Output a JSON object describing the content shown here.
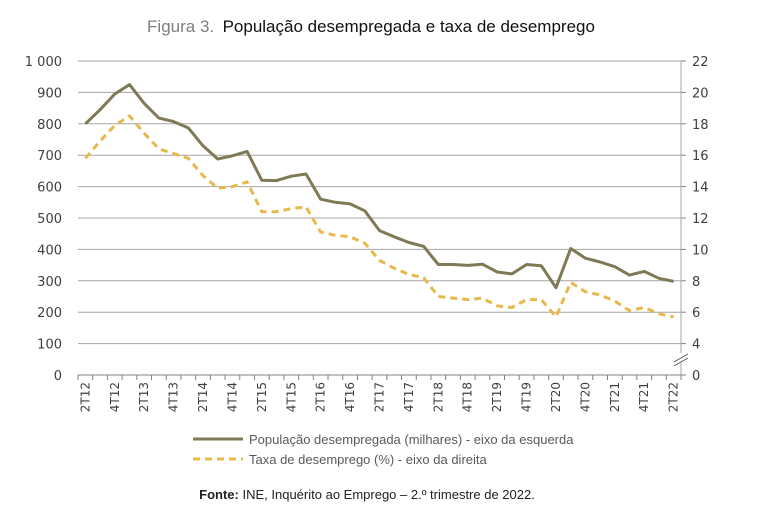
{
  "title": {
    "prefix": "Figura 3.",
    "main": "População desempregada e taxa de desemprego"
  },
  "source": {
    "label": "Fonte:",
    "text": " INE, Inquérito ao Emprego – 2.º trimestre de 2022."
  },
  "chart_data": {
    "type": "line",
    "x": [
      "2T12",
      "3T12",
      "4T12",
      "1T13",
      "2T13",
      "3T13",
      "4T13",
      "1T14",
      "2T14",
      "3T14",
      "4T14",
      "1T15",
      "2T15",
      "3T15",
      "4T15",
      "1T16",
      "2T16",
      "3T16",
      "4T16",
      "1T17",
      "2T17",
      "3T17",
      "4T17",
      "1T18",
      "2T18",
      "3T18",
      "4T18",
      "1T19",
      "2T19",
      "3T19",
      "4T19",
      "1T20",
      "2T20",
      "3T20",
      "4T20",
      "1T21",
      "2T21",
      "3T21",
      "4T21",
      "1T22",
      "2T22"
    ],
    "x_tick_labels": [
      "2T12",
      "4T12",
      "2T13",
      "4T13",
      "2T14",
      "4T14",
      "2T15",
      "4T15",
      "2T16",
      "4T16",
      "2T17",
      "4T17",
      "2T18",
      "4T18",
      "2T19",
      "4T19",
      "2T20",
      "4T20",
      "2T21",
      "4T21",
      "2T22"
    ],
    "y_left": {
      "ylim": [
        0,
        1000
      ],
      "ticks": [
        "0",
        "100",
        "200",
        "300",
        "400",
        "500",
        "600",
        "700",
        "800",
        "900",
        "1 000"
      ]
    },
    "y_right": {
      "ylim": [
        0,
        22
      ],
      "ticks": [
        "0",
        "4",
        "6",
        "8",
        "10",
        "12",
        "14",
        "16",
        "18",
        "20",
        "22"
      ],
      "axis_break": true
    },
    "grid": true,
    "legend_placement": "bottom",
    "series": [
      {
        "name": "População desempregada (milhares) - eixo da esquerda",
        "axis": "left",
        "style": "solid",
        "color": "#7f7a55",
        "values": [
          800,
          845,
          895,
          925,
          865,
          818,
          807,
          787,
          730,
          688,
          698,
          712,
          620,
          619,
          633,
          640,
          560,
          550,
          545,
          523,
          460,
          440,
          422,
          410,
          352,
          352,
          349,
          353,
          328,
          322,
          352,
          348,
          278,
          403,
          372,
          360,
          345,
          318,
          330,
          308,
          298
        ]
      },
      {
        "name": "Taxa de desemprego (%) - eixo da direita",
        "axis": "right",
        "style": "dashed",
        "color": "#e8b84a",
        "values": [
          15.8,
          16.9,
          17.9,
          18.5,
          17.4,
          16.4,
          16.1,
          15.8,
          14.7,
          13.9,
          14.0,
          14.3,
          12.4,
          12.4,
          12.6,
          12.7,
          11.1,
          10.9,
          10.8,
          10.4,
          9.3,
          8.8,
          8.4,
          8.2,
          7.0,
          6.9,
          6.8,
          6.9,
          6.4,
          6.3,
          6.8,
          6.8,
          5.7,
          7.9,
          7.3,
          7.1,
          6.7,
          6.1,
          6.3,
          5.9,
          5.7
        ]
      }
    ]
  }
}
